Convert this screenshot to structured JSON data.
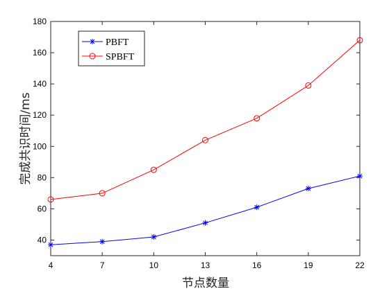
{
  "chart_data": {
    "type": "line",
    "title": "",
    "xlabel": "节点数量",
    "ylabel": "完成共识时间/ms",
    "x": [
      4,
      7,
      10,
      13,
      16,
      19,
      22
    ],
    "xticks": [
      "4",
      "7",
      "10",
      "13",
      "16",
      "19",
      "22"
    ],
    "yticks": [
      "40",
      "60",
      "80",
      "100",
      "120",
      "140",
      "160",
      "180"
    ],
    "xlim": [
      4,
      22
    ],
    "ylim": [
      30,
      180
    ],
    "grid": false,
    "legend_position": "top-left",
    "series": [
      {
        "name": "PBFT",
        "values": [
          37,
          39,
          42,
          51,
          61,
          73,
          81
        ],
        "color": "#0000ff",
        "marker": "asterisk"
      },
      {
        "name": "SPBFT",
        "values": [
          66,
          70,
          85,
          104,
          118,
          139,
          168
        ],
        "color": "#ff0000",
        "marker": "circle"
      }
    ]
  }
}
